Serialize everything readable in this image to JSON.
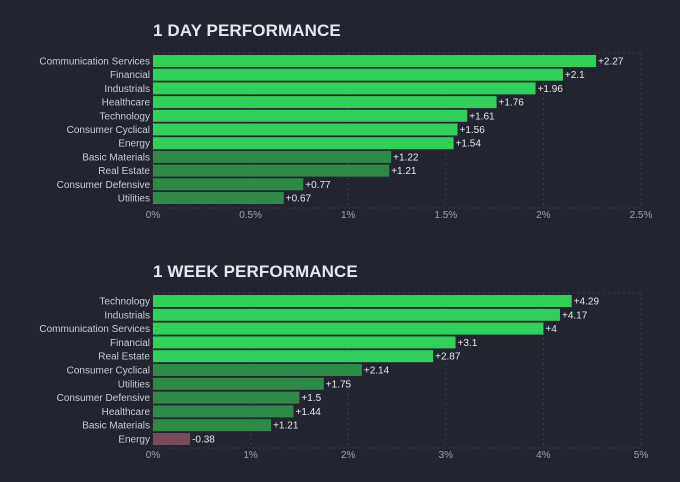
{
  "colors": {
    "background": "#22242f",
    "grid": "#3a3d4b",
    "label": "#c8cad3",
    "tick": "#9ea1ad",
    "positive_strong": "#2fd15a",
    "positive_weak": "#2f8a4a",
    "negative": "#7a4a5a"
  },
  "chart_data": [
    {
      "type": "bar",
      "orientation": "horizontal",
      "title": "1 DAY PERFORMANCE",
      "categories": [
        "Communication Services",
        "Financial",
        "Industrials",
        "Healthcare",
        "Technology",
        "Consumer Cyclical",
        "Energy",
        "Basic Materials",
        "Real Estate",
        "Consumer Defensive",
        "Utilities"
      ],
      "values": [
        2.27,
        2.1,
        1.96,
        1.76,
        1.61,
        1.56,
        1.54,
        1.22,
        1.21,
        0.77,
        0.67
      ],
      "value_labels": [
        "+2.27",
        "+2.1",
        "+1.96",
        "+1.76",
        "+1.61",
        "+1.56",
        "+1.54",
        "+1.22",
        "+1.21",
        "+0.77",
        "+0.67"
      ],
      "xlim": [
        0,
        2.5
      ],
      "xticks": [
        0,
        0.5,
        1,
        1.5,
        2,
        2.5
      ],
      "xtick_labels": [
        "0%",
        "0.5%",
        "1%",
        "1.5%",
        "2%",
        "2.5%"
      ],
      "grid": true
    },
    {
      "type": "bar",
      "orientation": "horizontal",
      "title": "1 WEEK PERFORMANCE",
      "categories": [
        "Technology",
        "Industrials",
        "Communication Services",
        "Financial",
        "Real Estate",
        "Consumer Cyclical",
        "Utilities",
        "Consumer Defensive",
        "Healthcare",
        "Basic Materials",
        "Energy"
      ],
      "values": [
        4.29,
        4.17,
        4.0,
        3.1,
        2.87,
        2.14,
        1.75,
        1.5,
        1.44,
        1.21,
        -0.38
      ],
      "value_labels": [
        "+4.29",
        "+4.17",
        "+4",
        "+3.1",
        "+2.87",
        "+2.14",
        "+1.75",
        "+1.5",
        "+1.44",
        "+1.21",
        "-0.38"
      ],
      "xlim": [
        0,
        5
      ],
      "xticks": [
        0,
        1,
        2,
        3,
        4,
        5
      ],
      "xtick_labels": [
        "0%",
        "1%",
        "2%",
        "3%",
        "4%",
        "5%"
      ],
      "grid": true
    }
  ]
}
